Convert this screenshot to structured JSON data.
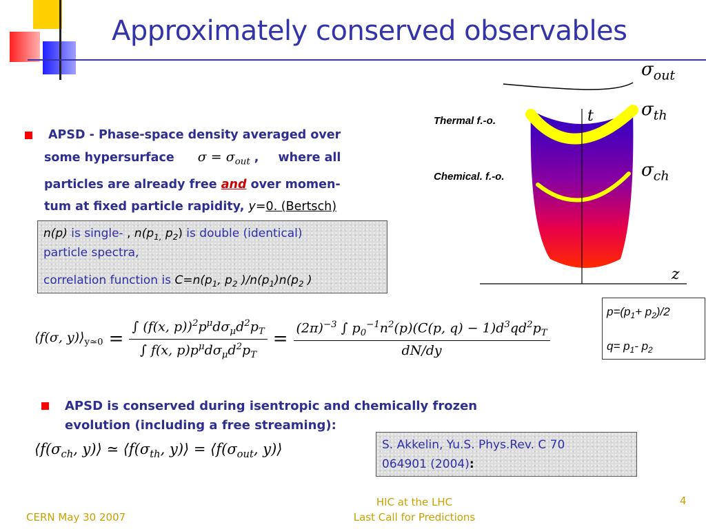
{
  "title": "Approximately conserved observables",
  "bullet1": {
    "line1": "APSD - Phase-space density averaged over",
    "line2_pre": "some hypersurface",
    "line2_math": "σ = σ",
    "line2_math_sub": "out",
    "line2_comma": " ,",
    "line2_post": "where all",
    "line3_pre": "particles are already free ",
    "line3_and": "and",
    "line3_post": " over momen-",
    "line4_pre": "tum at fixed particle rapidity",
    "line4_comma": ", ",
    "line4_y": "y=",
    "line4_post": "0. (Bertsch)"
  },
  "box1": {
    "np": "n(p)",
    "is_single": " is single- ",
    "comma": ", ",
    "n_open": "n(p",
    "sub1": "1,",
    "p2": " p",
    "sub2": "2",
    "close": ")",
    "is_double": " is double (identical)",
    "line2": "particle spectra,",
    "line3_pre": "correlation function is ",
    "C": "C=",
    "rest_1": "n(p",
    "rest_sub1": "1",
    "rest_2": ", p",
    "rest_sub2": "2",
    "rest_3": " )/n(p",
    "rest_sub3": "1",
    "rest_4": ")n(p",
    "rest_sub4": "2",
    "rest_5": " )"
  },
  "box_pq": {
    "p_line_a": "p=(p",
    "p_sub1": "1",
    "p_line_b": "+ p",
    "p_sub2": "2",
    "p_line_c": ")/2",
    "q_line_a": "q= p",
    "q_sub1": "1",
    "q_line_b": "- p",
    "q_sub2": "2"
  },
  "diagram": {
    "label_thermal": "Thermal f.-o.",
    "label_chemical": "Chemical. f.-o.",
    "axis_t": "t",
    "axis_z": "z",
    "sigma": "σ",
    "sub_out": "out",
    "sub_th": "th",
    "sub_ch": "ch"
  },
  "formula_main": {
    "lhs": "⟨f(σ, y)⟩",
    "lhs_sub": "y≃0",
    "eq": "=",
    "num1": "∫ (f(x, p))",
    "num1_sup": "2",
    "num1_rest": "p",
    "num1_mu": "μ",
    "num1_tail": "dσ",
    "num1_tail_sub": "μ",
    "num1_d2": "d",
    "num1_d2_sup": "2",
    "num1_pT": "p",
    "num1_pT_sub": "T",
    "den1": "∫ f(x, p)p",
    "den1_mu": "μ",
    "den1_tail": "dσ",
    "den1_tail_sub": "μ",
    "den1_d2": "d",
    "den1_d2_sup": "2",
    "den1_pT": "p",
    "den1_pT_sub": "T",
    "num2": "(2π)",
    "num2_sup": "−3",
    "num2_b": " ∫ p",
    "num2_b_sub": "0",
    "num2_b_sup": "−1",
    "num2_c": "n",
    "num2_c_sup": "2",
    "num2_d": "(p)(C(p, q) − 1)d",
    "num2_d_sup": "3",
    "num2_e": "qd",
    "num2_e_sup": "2",
    "num2_f": "p",
    "num2_f_sub": "T",
    "den2": "dN/dy"
  },
  "bullet2": {
    "line1": "APSD is conserved during isentropic and chemically frozen",
    "line2": "evolution (including a free streaming):"
  },
  "formula_conserved": {
    "a": "⟨f(σ",
    "a_sub": "ch",
    "b": ", y)⟩ ≃ ⟨f(σ",
    "b_sub": "th",
    "c": ", y)⟩ = ⟨f(σ",
    "c_sub": "out",
    "d": ", y)⟩"
  },
  "reference": {
    "line1": "S. Akkelin, Yu.S. Phys.Rev. C 70",
    "line2": "064901 (2004)",
    "colon": ":"
  },
  "footer": {
    "left": "CERN May 30 2007",
    "center_line1": "HIC at the LHC",
    "center_line2": "Last Call for Predictions",
    "page": "4"
  },
  "colors": {
    "title": "#3333aa",
    "bullet": "#ff0000",
    "text": "#2e2e90",
    "footer": "#c8a000",
    "freezeout_thermal": "#ffff00",
    "freezeout_chemical": "#ffff00",
    "gradient_top": "#2a00c8",
    "gradient_bottom": "#ff2a00"
  }
}
